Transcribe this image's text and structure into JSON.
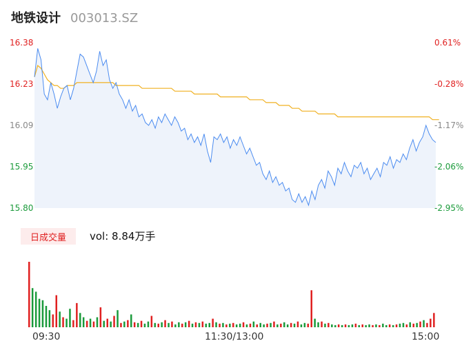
{
  "header": {
    "name": "地铁设计",
    "code": "003013.SZ"
  },
  "price_axis": {
    "labels": [
      "16.38",
      "16.23",
      "16.09",
      "15.95",
      "15.80"
    ],
    "colors": [
      "#e02020",
      "#e02020",
      "#888888",
      "#1a9a3a",
      "#1a9a3a"
    ]
  },
  "pct_axis": {
    "labels": [
      "0.61%",
      "-0.28%",
      "-1.17%",
      "-2.06%",
      "-2.95%"
    ],
    "colors": [
      "#e02020",
      "#e02020",
      "#888888",
      "#1a9a3a",
      "#1a9a3a"
    ]
  },
  "volume": {
    "tab_label": "日成交量",
    "summary": "vol: 8.84万手"
  },
  "time_axis": {
    "start": "09:30",
    "mid": "11:30/13:00",
    "end": "15:00"
  },
  "colors": {
    "price_line": "#4a8bf0",
    "avg_line": "#f0b020",
    "up": "#e02020",
    "down": "#1a9a3a",
    "fill": "#eef3fb"
  },
  "chart_data": {
    "type": "line",
    "ylim": [
      15.8,
      16.38
    ],
    "series": [
      {
        "role": "price",
        "values": [
          16.26,
          16.36,
          16.32,
          16.2,
          16.18,
          16.24,
          16.2,
          16.15,
          16.19,
          16.22,
          16.23,
          16.18,
          16.22,
          16.28,
          16.34,
          16.33,
          16.3,
          16.27,
          16.24,
          16.28,
          16.35,
          16.3,
          16.32,
          16.25,
          16.22,
          16.24,
          16.2,
          16.18,
          16.15,
          16.18,
          16.14,
          16.16,
          16.12,
          16.13,
          16.1,
          16.09,
          16.11,
          16.08,
          16.12,
          16.1,
          16.13,
          16.11,
          16.09,
          16.12,
          16.1,
          16.07,
          16.08,
          16.04,
          16.06,
          16.03,
          16.05,
          16.02,
          16.06,
          16.0,
          15.96,
          16.05,
          16.04,
          16.06,
          16.03,
          16.05,
          16.01,
          16.04,
          16.02,
          16.05,
          16.02,
          15.99,
          16.01,
          15.98,
          15.95,
          15.96,
          15.92,
          15.9,
          15.93,
          15.89,
          15.91,
          15.88,
          15.89,
          15.86,
          15.87,
          15.83,
          15.82,
          15.85,
          15.82,
          15.84,
          15.81,
          15.86,
          15.83,
          15.88,
          15.9,
          15.87,
          15.93,
          15.91,
          15.88,
          15.94,
          15.92,
          15.96,
          15.93,
          15.91,
          15.95,
          15.94,
          15.96,
          15.92,
          15.94,
          15.9,
          15.92,
          15.94,
          15.91,
          15.96,
          15.95,
          15.98,
          15.94,
          15.97,
          15.96,
          15.99,
          15.97,
          16.01,
          16.04,
          16.0,
          16.03,
          16.05,
          16.09,
          16.06,
          16.04,
          16.03
        ]
      },
      {
        "role": "average",
        "values": [
          16.26,
          16.3,
          16.29,
          16.27,
          16.25,
          16.24,
          16.23,
          16.23,
          16.22,
          16.22,
          16.23,
          16.23,
          16.23,
          16.24,
          16.24,
          16.24,
          16.24,
          16.24,
          16.24,
          16.24,
          16.24,
          16.24,
          16.24,
          16.24,
          16.24,
          16.23,
          16.23,
          16.23,
          16.23,
          16.23,
          16.23,
          16.23,
          16.23,
          16.22,
          16.22,
          16.22,
          16.22,
          16.22,
          16.22,
          16.22,
          16.22,
          16.22,
          16.22,
          16.21,
          16.21,
          16.21,
          16.21,
          16.21,
          16.21,
          16.2,
          16.2,
          16.2,
          16.2,
          16.2,
          16.2,
          16.2,
          16.2,
          16.19,
          16.19,
          16.19,
          16.19,
          16.19,
          16.19,
          16.19,
          16.19,
          16.19,
          16.18,
          16.18,
          16.18,
          16.18,
          16.18,
          16.17,
          16.17,
          16.17,
          16.17,
          16.16,
          16.16,
          16.16,
          16.16,
          16.15,
          16.15,
          16.15,
          16.14,
          16.14,
          16.14,
          16.14,
          16.14,
          16.13,
          16.13,
          16.13,
          16.13,
          16.13,
          16.13,
          16.12,
          16.12,
          16.12,
          16.12,
          16.12,
          16.12,
          16.12,
          16.12,
          16.12,
          16.12,
          16.12,
          16.12,
          16.12,
          16.12,
          16.12,
          16.12,
          16.12,
          16.12,
          16.12,
          16.12,
          16.12,
          16.12,
          16.12,
          16.12,
          16.12,
          16.12,
          16.12,
          16.12,
          16.12,
          16.11,
          16.11,
          16.11
        ]
      }
    ],
    "volume_bars": [
      {
        "v": 92,
        "d": "up"
      },
      {
        "v": 55,
        "d": "down"
      },
      {
        "v": 50,
        "d": "down"
      },
      {
        "v": 40,
        "d": "down"
      },
      {
        "v": 38,
        "d": "down"
      },
      {
        "v": 30,
        "d": "down"
      },
      {
        "v": 24,
        "d": "down"
      },
      {
        "v": 18,
        "d": "up"
      },
      {
        "v": 45,
        "d": "up"
      },
      {
        "v": 22,
        "d": "down"
      },
      {
        "v": 14,
        "d": "up"
      },
      {
        "v": 12,
        "d": "down"
      },
      {
        "v": 26,
        "d": "down"
      },
      {
        "v": 10,
        "d": "up"
      },
      {
        "v": 34,
        "d": "up"
      },
      {
        "v": 20,
        "d": "down"
      },
      {
        "v": 14,
        "d": "down"
      },
      {
        "v": 9,
        "d": "up"
      },
      {
        "v": 12,
        "d": "down"
      },
      {
        "v": 8,
        "d": "up"
      },
      {
        "v": 14,
        "d": "down"
      },
      {
        "v": 28,
        "d": "up"
      },
      {
        "v": 9,
        "d": "down"
      },
      {
        "v": 12,
        "d": "up"
      },
      {
        "v": 8,
        "d": "down"
      },
      {
        "v": 16,
        "d": "up"
      },
      {
        "v": 24,
        "d": "down"
      },
      {
        "v": 6,
        "d": "up"
      },
      {
        "v": 8,
        "d": "down"
      },
      {
        "v": 10,
        "d": "up"
      },
      {
        "v": 18,
        "d": "down"
      },
      {
        "v": 7,
        "d": "up"
      },
      {
        "v": 6,
        "d": "down"
      },
      {
        "v": 9,
        "d": "up"
      },
      {
        "v": 5,
        "d": "down"
      },
      {
        "v": 8,
        "d": "down"
      },
      {
        "v": 16,
        "d": "up"
      },
      {
        "v": 6,
        "d": "down"
      },
      {
        "v": 5,
        "d": "up"
      },
      {
        "v": 7,
        "d": "down"
      },
      {
        "v": 10,
        "d": "up"
      },
      {
        "v": 6,
        "d": "down"
      },
      {
        "v": 8,
        "d": "up"
      },
      {
        "v": 4,
        "d": "down"
      },
      {
        "v": 7,
        "d": "down"
      },
      {
        "v": 5,
        "d": "up"
      },
      {
        "v": 7,
        "d": "down"
      },
      {
        "v": 9,
        "d": "up"
      },
      {
        "v": 5,
        "d": "down"
      },
      {
        "v": 7,
        "d": "up"
      },
      {
        "v": 6,
        "d": "down"
      },
      {
        "v": 8,
        "d": "up"
      },
      {
        "v": 5,
        "d": "down"
      },
      {
        "v": 6,
        "d": "down"
      },
      {
        "v": 12,
        "d": "up"
      },
      {
        "v": 7,
        "d": "down"
      },
      {
        "v": 5,
        "d": "up"
      },
      {
        "v": 6,
        "d": "down"
      },
      {
        "v": 4,
        "d": "up"
      },
      {
        "v": 5,
        "d": "down"
      },
      {
        "v": 6,
        "d": "up"
      },
      {
        "v": 4,
        "d": "down"
      },
      {
        "v": 5,
        "d": "down"
      },
      {
        "v": 7,
        "d": "up"
      },
      {
        "v": 4,
        "d": "down"
      },
      {
        "v": 5,
        "d": "up"
      },
      {
        "v": 8,
        "d": "down"
      },
      {
        "v": 4,
        "d": "up"
      },
      {
        "v": 6,
        "d": "down"
      },
      {
        "v": 4,
        "d": "down"
      },
      {
        "v": 5,
        "d": "up"
      },
      {
        "v": 6,
        "d": "down"
      },
      {
        "v": 8,
        "d": "up"
      },
      {
        "v": 4,
        "d": "down"
      },
      {
        "v": 5,
        "d": "up"
      },
      {
        "v": 7,
        "d": "down"
      },
      {
        "v": 4,
        "d": "down"
      },
      {
        "v": 6,
        "d": "up"
      },
      {
        "v": 5,
        "d": "down"
      },
      {
        "v": 8,
        "d": "up"
      },
      {
        "v": 4,
        "d": "down"
      },
      {
        "v": 6,
        "d": "down"
      },
      {
        "v": 5,
        "d": "up"
      },
      {
        "v": 52,
        "d": "up"
      },
      {
        "v": 12,
        "d": "down"
      },
      {
        "v": 7,
        "d": "down"
      },
      {
        "v": 8,
        "d": "up"
      },
      {
        "v": 5,
        "d": "down"
      },
      {
        "v": 6,
        "d": "up"
      },
      {
        "v": 4,
        "d": "down"
      },
      {
        "v": 3,
        "d": "down"
      },
      {
        "v": 4,
        "d": "up"
      },
      {
        "v": 3,
        "d": "down"
      },
      {
        "v": 4,
        "d": "up"
      },
      {
        "v": 3,
        "d": "down"
      },
      {
        "v": 4,
        "d": "down"
      },
      {
        "v": 5,
        "d": "up"
      },
      {
        "v": 3,
        "d": "down"
      },
      {
        "v": 4,
        "d": "up"
      },
      {
        "v": 3,
        "d": "down"
      },
      {
        "v": 4,
        "d": "down"
      },
      {
        "v": 3,
        "d": "up"
      },
      {
        "v": 4,
        "d": "down"
      },
      {
        "v": 3,
        "d": "up"
      },
      {
        "v": 5,
        "d": "down"
      },
      {
        "v": 3,
        "d": "down"
      },
      {
        "v": 4,
        "d": "up"
      },
      {
        "v": 3,
        "d": "down"
      },
      {
        "v": 4,
        "d": "up"
      },
      {
        "v": 5,
        "d": "down"
      },
      {
        "v": 6,
        "d": "down"
      },
      {
        "v": 4,
        "d": "up"
      },
      {
        "v": 7,
        "d": "down"
      },
      {
        "v": 5,
        "d": "up"
      },
      {
        "v": 6,
        "d": "down"
      },
      {
        "v": 8,
        "d": "up"
      },
      {
        "v": 10,
        "d": "down"
      },
      {
        "v": 6,
        "d": "up"
      },
      {
        "v": 12,
        "d": "up"
      },
      {
        "v": 20,
        "d": "up"
      }
    ]
  }
}
